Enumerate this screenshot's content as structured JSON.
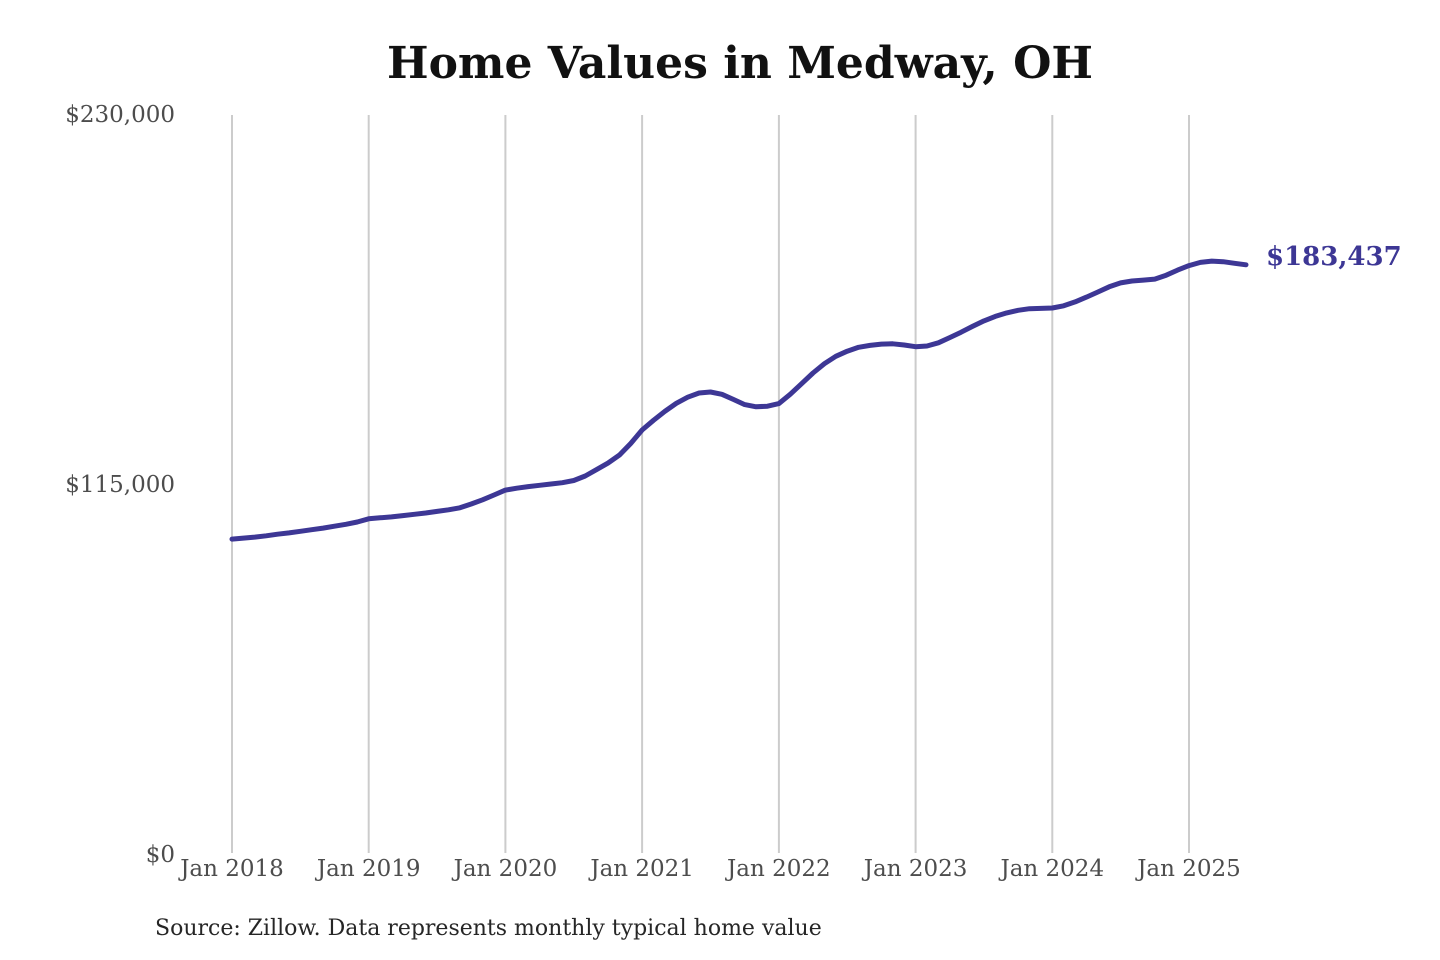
{
  "chart_data": {
    "type": "line",
    "title": "Home Values in Medway, OH",
    "source": "Source: Zillow. Data represents monthly typical home value",
    "end_annotation": "$183,437",
    "latest_value": 183437,
    "frequency": "monthly",
    "x_start": "Jan 2018",
    "x_end": "Jun 2025",
    "xlabel": "",
    "ylabel": "",
    "ylim": [
      0,
      230000
    ],
    "grid": "vertical-only",
    "legend": "none",
    "y_ticks": [
      {
        "value": 0,
        "label": "$0"
      },
      {
        "value": 115000,
        "label": "$115,000"
      },
      {
        "value": 230000,
        "label": "$230,000"
      }
    ],
    "x_tick_labels": [
      "Jan 2018",
      "Jan 2019",
      "Jan 2020",
      "Jan 2021",
      "Jan 2022",
      "Jan 2023",
      "Jan 2024",
      "Jan 2025"
    ],
    "colors": {
      "line": "#3d3795",
      "grid": "#cccccc",
      "tick_text": "#4d4d4d",
      "title_text": "#111111"
    },
    "months": [
      "2018-01",
      "2018-02",
      "2018-03",
      "2018-04",
      "2018-05",
      "2018-06",
      "2018-07",
      "2018-08",
      "2018-09",
      "2018-10",
      "2018-11",
      "2018-12",
      "2019-01",
      "2019-02",
      "2019-03",
      "2019-04",
      "2019-05",
      "2019-06",
      "2019-07",
      "2019-08",
      "2019-09",
      "2019-10",
      "2019-11",
      "2019-12",
      "2020-01",
      "2020-02",
      "2020-03",
      "2020-04",
      "2020-05",
      "2020-06",
      "2020-07",
      "2020-08",
      "2020-09",
      "2020-10",
      "2020-11",
      "2020-12",
      "2021-01",
      "2021-02",
      "2021-03",
      "2021-04",
      "2021-05",
      "2021-06",
      "2021-07",
      "2021-08",
      "2021-09",
      "2021-10",
      "2021-11",
      "2021-12",
      "2022-01",
      "2022-02",
      "2022-03",
      "2022-04",
      "2022-05",
      "2022-06",
      "2022-07",
      "2022-08",
      "2022-09",
      "2022-10",
      "2022-11",
      "2022-12",
      "2023-01",
      "2023-02",
      "2023-03",
      "2023-04",
      "2023-05",
      "2023-06",
      "2023-07",
      "2023-08",
      "2023-09",
      "2023-10",
      "2023-11",
      "2023-12",
      "2024-01",
      "2024-02",
      "2024-03",
      "2024-04",
      "2024-05",
      "2024-06",
      "2024-07",
      "2024-08",
      "2024-09",
      "2024-10",
      "2024-11",
      "2024-12",
      "2025-01",
      "2025-02",
      "2025-03",
      "2025-04",
      "2025-05",
      "2025-06"
    ],
    "values": [
      98200,
      98500,
      98800,
      99200,
      99700,
      100100,
      100600,
      101100,
      101600,
      102200,
      102800,
      103500,
      104500,
      104800,
      105100,
      105500,
      105900,
      106300,
      106800,
      107300,
      107900,
      109100,
      110400,
      111900,
      113400,
      114000,
      114500,
      114900,
      115300,
      115700,
      116400,
      117800,
      119800,
      121800,
      124300,
      127900,
      132100,
      135100,
      137900,
      140400,
      142300,
      143600,
      143900,
      143200,
      141600,
      140000,
      139300,
      139500,
      140300,
      143200,
      146500,
      149800,
      152700,
      155000,
      156600,
      157800,
      158400,
      158800,
      158900,
      158500,
      158000,
      158200,
      159200,
      160800,
      162500,
      164300,
      166000,
      167400,
      168500,
      169300,
      169800,
      169900,
      170000,
      170700,
      171900,
      173400,
      175000,
      176600,
      177800,
      178400,
      178700,
      179000,
      180200,
      181800,
      183200,
      184200,
      184600,
      184400,
      183900,
      183437
    ]
  }
}
